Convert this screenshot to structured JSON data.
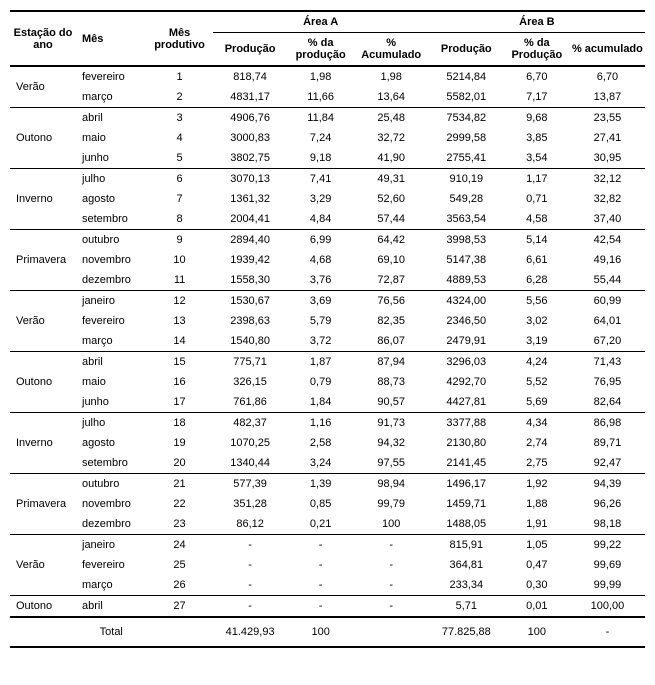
{
  "headers": {
    "estacao": "Estação do ano",
    "mes": "Mês",
    "mes_prod": "Mês produtivo",
    "areaA": "Área  A",
    "areaB": "Área B",
    "prod": "Produção",
    "pctProdA": "% da produção",
    "pctAccA": "% Acumulado",
    "pctProdB": "% da Produção",
    "pctAccB": "% acumulado"
  },
  "groups": [
    {
      "season": "Verão",
      "rows": [
        {
          "mes": "fevereiro",
          "mp": "1",
          "aProd": "818,74",
          "aPct": "1,98",
          "aAcc": "1,98",
          "bProd": "5214,84",
          "bPct": "6,70",
          "bAcc": "6,70"
        },
        {
          "mes": "março",
          "mp": "2",
          "aProd": "4831,17",
          "aPct": "11,66",
          "aAcc": "13,64",
          "bProd": "5582,01",
          "bPct": "7,17",
          "bAcc": "13,87"
        }
      ]
    },
    {
      "season": "Outono",
      "rows": [
        {
          "mes": "abril",
          "mp": "3",
          "aProd": "4906,76",
          "aPct": "11,84",
          "aAcc": "25,48",
          "bProd": "7534,82",
          "bPct": "9,68",
          "bAcc": "23,55"
        },
        {
          "mes": "maio",
          "mp": "4",
          "aProd": "3000,83",
          "aPct": "7,24",
          "aAcc": "32,72",
          "bProd": "2999,58",
          "bPct": "3,85",
          "bAcc": "27,41"
        },
        {
          "mes": "junho",
          "mp": "5",
          "aProd": "3802,75",
          "aPct": "9,18",
          "aAcc": "41,90",
          "bProd": "2755,41",
          "bPct": "3,54",
          "bAcc": "30,95"
        }
      ]
    },
    {
      "season": "Inverno",
      "rows": [
        {
          "mes": "julho",
          "mp": "6",
          "aProd": "3070,13",
          "aPct": "7,41",
          "aAcc": "49,31",
          "bProd": "910,19",
          "bPct": "1,17",
          "bAcc": "32,12"
        },
        {
          "mes": "agosto",
          "mp": "7",
          "aProd": "1361,32",
          "aPct": "3,29",
          "aAcc": "52,60",
          "bProd": "549,28",
          "bPct": "0,71",
          "bAcc": "32,82"
        },
        {
          "mes": "setembro",
          "mp": "8",
          "aProd": "2004,41",
          "aPct": "4,84",
          "aAcc": "57,44",
          "bProd": "3563,54",
          "bPct": "4,58",
          "bAcc": "37,40"
        }
      ]
    },
    {
      "season": "Primavera",
      "rows": [
        {
          "mes": "outubro",
          "mp": "9",
          "aProd": "2894,40",
          "aPct": "6,99",
          "aAcc": "64,42",
          "bProd": "3998,53",
          "bPct": "5,14",
          "bAcc": "42,54"
        },
        {
          "mes": "novembro",
          "mp": "10",
          "aProd": "1939,42",
          "aPct": "4,68",
          "aAcc": "69,10",
          "bProd": "5147,38",
          "bPct": "6,61",
          "bAcc": "49,16"
        },
        {
          "mes": "dezembro",
          "mp": "11",
          "aProd": "1558,30",
          "aPct": "3,76",
          "aAcc": "72,87",
          "bProd": "4889,53",
          "bPct": "6,28",
          "bAcc": "55,44"
        }
      ]
    },
    {
      "season": "Verão",
      "rows": [
        {
          "mes": "janeiro",
          "mp": "12",
          "aProd": "1530,67",
          "aPct": "3,69",
          "aAcc": "76,56",
          "bProd": "4324,00",
          "bPct": "5,56",
          "bAcc": "60,99"
        },
        {
          "mes": "fevereiro",
          "mp": "13",
          "aProd": "2398,63",
          "aPct": "5,79",
          "aAcc": "82,35",
          "bProd": "2346,50",
          "bPct": "3,02",
          "bAcc": "64,01"
        },
        {
          "mes": "março",
          "mp": "14",
          "aProd": "1540,80",
          "aPct": "3,72",
          "aAcc": "86,07",
          "bProd": "2479,91",
          "bPct": "3,19",
          "bAcc": "67,20"
        }
      ]
    },
    {
      "season": "Outono",
      "rows": [
        {
          "mes": "abril",
          "mp": "15",
          "aProd": "775,71",
          "aPct": "1,87",
          "aAcc": "87,94",
          "bProd": "3296,03",
          "bPct": "4,24",
          "bAcc": "71,43"
        },
        {
          "mes": "maio",
          "mp": "16",
          "aProd": "326,15",
          "aPct": "0,79",
          "aAcc": "88,73",
          "bProd": "4292,70",
          "bPct": "5,52",
          "bAcc": "76,95"
        },
        {
          "mes": "junho",
          "mp": "17",
          "aProd": "761,86",
          "aPct": "1,84",
          "aAcc": "90,57",
          "bProd": "4427,81",
          "bPct": "5,69",
          "bAcc": "82,64"
        }
      ]
    },
    {
      "season": "Inverno",
      "rows": [
        {
          "mes": "julho",
          "mp": "18",
          "aProd": "482,37",
          "aPct": "1,16",
          "aAcc": "91,73",
          "bProd": "3377,88",
          "bPct": "4,34",
          "bAcc": "86,98"
        },
        {
          "mes": "agosto",
          "mp": "19",
          "aProd": "1070,25",
          "aPct": "2,58",
          "aAcc": "94,32",
          "bProd": "2130,80",
          "bPct": "2,74",
          "bAcc": "89,71"
        },
        {
          "mes": "setembro",
          "mp": "20",
          "aProd": "1340,44",
          "aPct": "3,24",
          "aAcc": "97,55",
          "bProd": "2141,45",
          "bPct": "2,75",
          "bAcc": "92,47"
        }
      ]
    },
    {
      "season": "Primavera",
      "rows": [
        {
          "mes": "outubro",
          "mp": "21",
          "aProd": "577,39",
          "aPct": "1,39",
          "aAcc": "98,94",
          "bProd": "1496,17",
          "bPct": "1,92",
          "bAcc": "94,39"
        },
        {
          "mes": "novembro",
          "mp": "22",
          "aProd": "351,28",
          "aPct": "0,85",
          "aAcc": "99,79",
          "bProd": "1459,71",
          "bPct": "1,88",
          "bAcc": "96,26"
        },
        {
          "mes": "dezembro",
          "mp": "23",
          "aProd": "86,12",
          "aPct": "0,21",
          "aAcc": "100",
          "bProd": "1488,05",
          "bPct": "1,91",
          "bAcc": "98,18"
        }
      ]
    },
    {
      "season": "Verão",
      "rows": [
        {
          "mes": "janeiro",
          "mp": "24",
          "aProd": "-",
          "aPct": "-",
          "aAcc": "-",
          "bProd": "815,91",
          "bPct": "1,05",
          "bAcc": "99,22"
        },
        {
          "mes": "fevereiro",
          "mp": "25",
          "aProd": "-",
          "aPct": "-",
          "aAcc": "-",
          "bProd": "364,81",
          "bPct": "0,47",
          "bAcc": "99,69"
        },
        {
          "mes": "março",
          "mp": "26",
          "aProd": "-",
          "aPct": "-",
          "aAcc": "-",
          "bProd": "233,34",
          "bPct": "0,30",
          "bAcc": "99,99"
        }
      ]
    },
    {
      "season": "Outono",
      "rows": [
        {
          "mes": "abril",
          "mp": "27",
          "aProd": "-",
          "aPct": "-",
          "aAcc": "-",
          "bProd": "5,71",
          "bPct": "0,01",
          "bAcc": "100,00"
        }
      ]
    }
  ],
  "total": {
    "label": "Total",
    "aProd": "41.429,93",
    "aPct": "100",
    "aAcc": "",
    "bProd": "77.825,88",
    "bPct": "100",
    "bAcc": "-"
  }
}
